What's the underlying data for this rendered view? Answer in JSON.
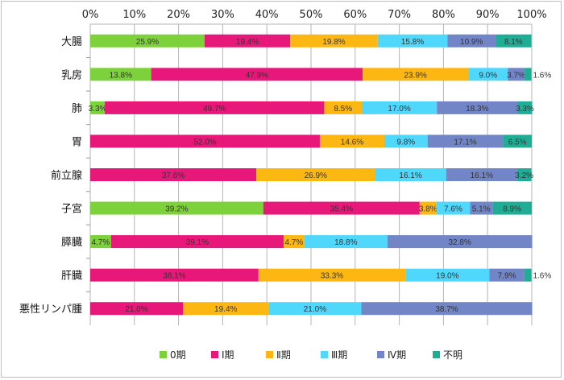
{
  "chart_data": {
    "type": "bar",
    "orientation": "horizontal",
    "stacked": "percent",
    "categories": [
      "大腸",
      "乳房",
      "肺",
      "胃",
      "前立腺",
      "子宮",
      "膵臓",
      "肝臓",
      "悪性リンパ腫"
    ],
    "series": [
      {
        "name": "0期",
        "color": "#7dd13a",
        "values": [
          25.9,
          13.8,
          3.3,
          0,
          0,
          39.2,
          4.7,
          0,
          0
        ]
      },
      {
        "name": "Ⅰ期",
        "color": "#e8177a",
        "values": [
          19.4,
          47.9,
          49.7,
          52.0,
          37.6,
          35.4,
          39.1,
          38.1,
          21.0
        ]
      },
      {
        "name": "Ⅱ期",
        "color": "#fdb712",
        "values": [
          19.8,
          23.9,
          8.5,
          14.6,
          26.9,
          3.8,
          4.7,
          33.3,
          19.4
        ]
      },
      {
        "name": "Ⅲ期",
        "color": "#4fd8fb",
        "values": [
          15.8,
          9.0,
          17.0,
          9.8,
          16.1,
          7.6,
          18.8,
          19.0,
          21.0
        ]
      },
      {
        "name": "Ⅳ期",
        "color": "#7285c6",
        "values": [
          10.9,
          3.7,
          18.3,
          17.1,
          16.1,
          5.1,
          32.8,
          7.9,
          38.7
        ]
      },
      {
        "name": "不明",
        "color": "#1fae95",
        "values": [
          8.1,
          1.6,
          3.3,
          6.5,
          3.2,
          8.9,
          0,
          1.6,
          0
        ]
      }
    ],
    "x_ticks": [
      "0%",
      "10%",
      "20%",
      "30%",
      "40%",
      "50%",
      "60%",
      "70%",
      "80%",
      "90%",
      "100%"
    ],
    "xlim": [
      0,
      100
    ],
    "grid": true,
    "legend_position": "bottom"
  }
}
